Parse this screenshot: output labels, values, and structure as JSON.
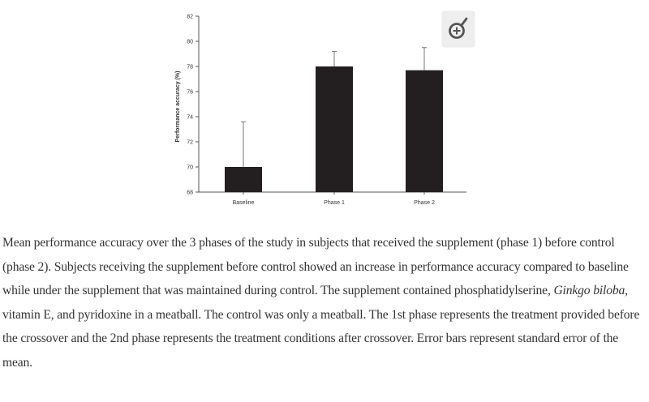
{
  "chart_data": {
    "type": "bar",
    "categories": [
      "Baseline",
      "Phase 1",
      "Phase 2"
    ],
    "values": [
      70.0,
      78.0,
      77.7
    ],
    "error_upper": [
      73.6,
      79.2,
      79.5
    ],
    "ylabel": "Performance accuracy (%)",
    "xlabel": "",
    "ylim": [
      68,
      82
    ],
    "yticks": [
      "68",
      "70",
      "72",
      "74",
      "76",
      "78",
      "80",
      "82"
    ],
    "error_bars": "standard error of the mean (upper only)",
    "grid": false,
    "bar_color": "#231f20"
  },
  "zoom": {
    "icon": "zoom-in-icon"
  },
  "caption": {
    "part1": "Mean performance accuracy over the 3 phases of the study in subjects that received the supplement (phase 1) before control (phase 2). Subjects receiving the supplement before control showed an increase in performance accuracy compared to baseline while under the supplement that was maintained during control. The supplement contained phosphatidylserine, ",
    "italic": "Ginkgo biloba",
    "part2": ", vitamin E, and pyridoxine in a meatball. The control was only a meatball. The 1st phase represents the treatment provided before the crossover and the 2nd phase represents the treatment conditions after crossover. Error bars represent standard error of the mean."
  }
}
